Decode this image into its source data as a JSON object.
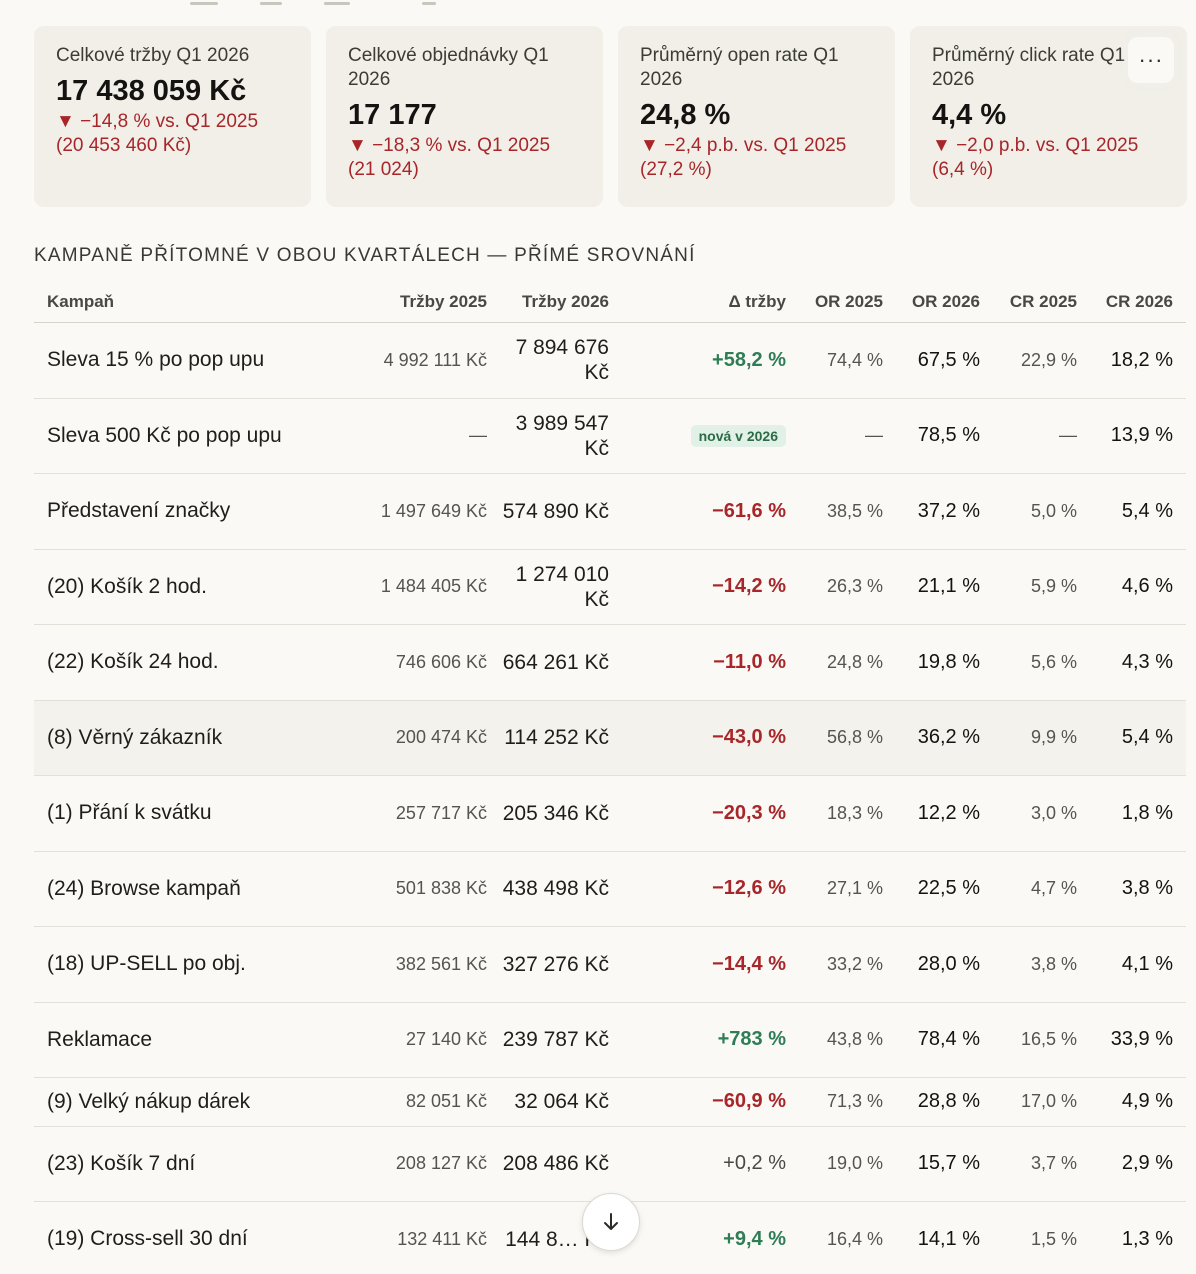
{
  "colors": {
    "background": "#faf9f5",
    "card_background": "#f1efe8",
    "negative": "#a8262a",
    "positive": "#2e7d55",
    "badge_background": "#e1f1e7",
    "row_highlight": "#f3f2ec"
  },
  "cards": [
    {
      "label": "Celkové tržby Q1 2026",
      "value": "17 438 059 Kč",
      "delta": "▼ −14,8 % vs. Q1 2025 (20 453 460 Kč)"
    },
    {
      "label": "Celkové objednávky Q1 2026",
      "value": "17 177",
      "delta": "▼ −18,3 % vs. Q1 2025 (21 024)"
    },
    {
      "label": "Průměrný open rate Q1 2026",
      "value": "24,8 %",
      "delta": "▼ −2,4 p.b. vs. Q1 2025 (27,2 %)"
    },
    {
      "label": "Průměrný click rate Q1 2026",
      "value": "4,4 %",
      "delta": "▼ −2,0 p.b. vs. Q1 2025 (6,4 %)"
    }
  ],
  "menu_button": {
    "label": "···",
    "icon": "more-horizontal-icon"
  },
  "section": {
    "title": "KAMPANĚ PŘÍTOMNÉ V OBOU KVARTÁLECH — PŘÍMÉ SROVNÁNÍ"
  },
  "table": {
    "headers": {
      "name": "Kampaň",
      "rev25": "Tržby 2025",
      "rev26": "Tržby 2026",
      "delta": "Δ tržby",
      "or25": "OR 2025",
      "or26": "OR 2026",
      "cr25": "CR 2025",
      "cr26": "CR 2026"
    },
    "rows": [
      {
        "name": "Sleva 15 % po pop upu",
        "rev25": "4 992 111 Kč",
        "rev26": "7 894 676 Kč",
        "delta": "+58,2 %",
        "delta_kind": "pos",
        "or25": "74,4 %",
        "or26": "67,5 %",
        "cr25": "22,9 %",
        "cr26": "18,2 %"
      },
      {
        "name": "Sleva 500 Kč po pop upu",
        "rev25": "—",
        "rev26": "3 989 547 Kč",
        "delta": "nová v 2026",
        "delta_kind": "badge",
        "or25": "—",
        "or26": "78,5 %",
        "cr25": "—",
        "cr26": "13,9 %"
      },
      {
        "name": "Představení značky",
        "rev25": "1 497 649 Kč",
        "rev26": "574 890 Kč",
        "delta": "−61,6 %",
        "delta_kind": "neg",
        "or25": "38,5 %",
        "or26": "37,2 %",
        "cr25": "5,0 %",
        "cr26": "5,4 %"
      },
      {
        "name": "(20) Košík 2 hod.",
        "rev25": "1 484 405 Kč",
        "rev26": "1 274 010 Kč",
        "delta": "−14,2 %",
        "delta_kind": "neg",
        "or25": "26,3 %",
        "or26": "21,1 %",
        "cr25": "5,9 %",
        "cr26": "4,6 %"
      },
      {
        "name": "(22) Košík 24 hod.",
        "rev25": "746 606 Kč",
        "rev26": "664 261 Kč",
        "delta": "−11,0 %",
        "delta_kind": "neg",
        "or25": "24,8 %",
        "or26": "19,8 %",
        "cr25": "5,6 %",
        "cr26": "4,3 %"
      },
      {
        "name": "(8) Věrný zákazník",
        "rev25": "200 474 Kč",
        "rev26": "114 252 Kč",
        "delta": "−43,0 %",
        "delta_kind": "neg",
        "or25": "56,8 %",
        "or26": "36,2 %",
        "cr25": "9,9 %",
        "cr26": "5,4 %",
        "highlight": true
      },
      {
        "name": "(1) Přání k svátku",
        "rev25": "257 717 Kč",
        "rev26": "205 346 Kč",
        "delta": "−20,3 %",
        "delta_kind": "neg",
        "or25": "18,3 %",
        "or26": "12,2 %",
        "cr25": "3,0 %",
        "cr26": "1,8 %"
      },
      {
        "name": "(24) Browse kampaň",
        "rev25": "501 838 Kč",
        "rev26": "438 498 Kč",
        "delta": "−12,6 %",
        "delta_kind": "neg",
        "or25": "27,1 %",
        "or26": "22,5 %",
        "cr25": "4,7 %",
        "cr26": "3,8 %"
      },
      {
        "name": "(18) UP-SELL po obj.",
        "rev25": "382 561 Kč",
        "rev26": "327 276 Kč",
        "delta": "−14,4 %",
        "delta_kind": "neg",
        "or25": "33,2 %",
        "or26": "28,0 %",
        "cr25": "3,8 %",
        "cr26": "4,1 %"
      },
      {
        "name": "Reklamace",
        "rev25": "27 140 Kč",
        "rev26": "239 787 Kč",
        "delta": "+783 %",
        "delta_kind": "pos",
        "or25": "43,8 %",
        "or26": "78,4 %",
        "cr25": "16,5 %",
        "cr26": "33,9 %"
      },
      {
        "name": "(9) Velký nákup dárek",
        "rev25": "82 051 Kč",
        "rev26": "32 064 Kč",
        "delta": "−60,9 %",
        "delta_kind": "neg",
        "or25": "71,3 %",
        "or26": "28,8 %",
        "cr25": "17,0 %",
        "cr26": "4,9 %",
        "short": true
      },
      {
        "name": "(23) Košík 7 dní",
        "rev25": "208 127 Kč",
        "rev26": "208 486 Kč",
        "delta": "+0,2 %",
        "delta_kind": "neu",
        "or25": "19,0 %",
        "or26": "15,7 %",
        "cr25": "3,7 %",
        "cr26": "2,9 %"
      },
      {
        "name": "(19) Cross-sell 30 dní",
        "rev25": "132 411 Kč",
        "rev26": "144 8… Kč",
        "delta": "+9,4 %",
        "delta_kind": "pos",
        "or25": "16,4 %",
        "or26": "14,1 %",
        "cr25": "1,5 %",
        "cr26": "1,3 %"
      }
    ]
  },
  "scroll_button": {
    "icon": "arrow-down-icon"
  }
}
